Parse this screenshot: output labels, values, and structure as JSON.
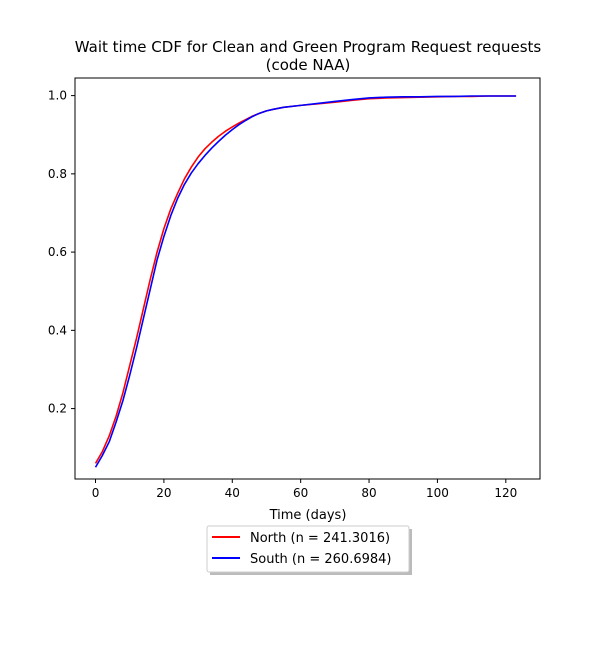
{
  "chart_data": {
    "type": "line",
    "title_line1": "Wait time CDF for Clean and Green Program Request  requests",
    "title_line2": "(code NAA)",
    "xlabel": "Time (days)",
    "ylabel": "",
    "xlim": [
      -6,
      130
    ],
    "ylim": [
      0.02,
      1.045
    ],
    "xticks": [
      0,
      20,
      40,
      60,
      80,
      100,
      120
    ],
    "yticks": [
      0.2,
      0.4,
      0.6,
      0.8,
      1.0
    ],
    "grid": false,
    "legend_position": "below",
    "series": [
      {
        "name": "North (n = 241.3016)",
        "color": "#ff0000",
        "x": [
          0,
          2,
          4,
          6,
          8,
          10,
          12,
          14,
          16,
          18,
          20,
          22,
          24,
          26,
          28,
          30,
          32,
          34,
          36,
          38,
          40,
          42,
          44,
          46,
          48,
          50,
          52,
          55,
          60,
          65,
          70,
          75,
          80,
          85,
          90,
          95,
          100,
          105,
          110,
          115,
          120,
          123
        ],
        "y": [
          0.06,
          0.09,
          0.13,
          0.18,
          0.24,
          0.31,
          0.38,
          0.455,
          0.53,
          0.6,
          0.66,
          0.71,
          0.75,
          0.787,
          0.817,
          0.843,
          0.864,
          0.881,
          0.896,
          0.909,
          0.92,
          0.93,
          0.939,
          0.948,
          0.955,
          0.961,
          0.965,
          0.97,
          0.975,
          0.979,
          0.983,
          0.988,
          0.992,
          0.994,
          0.995,
          0.996,
          0.997,
          0.998,
          0.998,
          0.999,
          0.999,
          0.999
        ]
      },
      {
        "name": "South (n = 260.6984)",
        "color": "#0000ff",
        "x": [
          0,
          2,
          4,
          6,
          8,
          10,
          12,
          14,
          16,
          18,
          20,
          22,
          24,
          26,
          28,
          30,
          32,
          34,
          36,
          38,
          40,
          42,
          44,
          46,
          48,
          50,
          52,
          55,
          60,
          65,
          70,
          75,
          80,
          85,
          90,
          95,
          100,
          105,
          110,
          115,
          120,
          123
        ],
        "y": [
          0.05,
          0.08,
          0.115,
          0.165,
          0.22,
          0.285,
          0.355,
          0.43,
          0.505,
          0.58,
          0.64,
          0.693,
          0.737,
          0.773,
          0.802,
          0.826,
          0.847,
          0.866,
          0.883,
          0.899,
          0.913,
          0.926,
          0.937,
          0.947,
          0.955,
          0.961,
          0.965,
          0.97,
          0.975,
          0.98,
          0.985,
          0.99,
          0.994,
          0.996,
          0.997,
          0.997,
          0.998,
          0.998,
          0.999,
          0.999,
          0.999,
          0.999
        ]
      }
    ]
  }
}
